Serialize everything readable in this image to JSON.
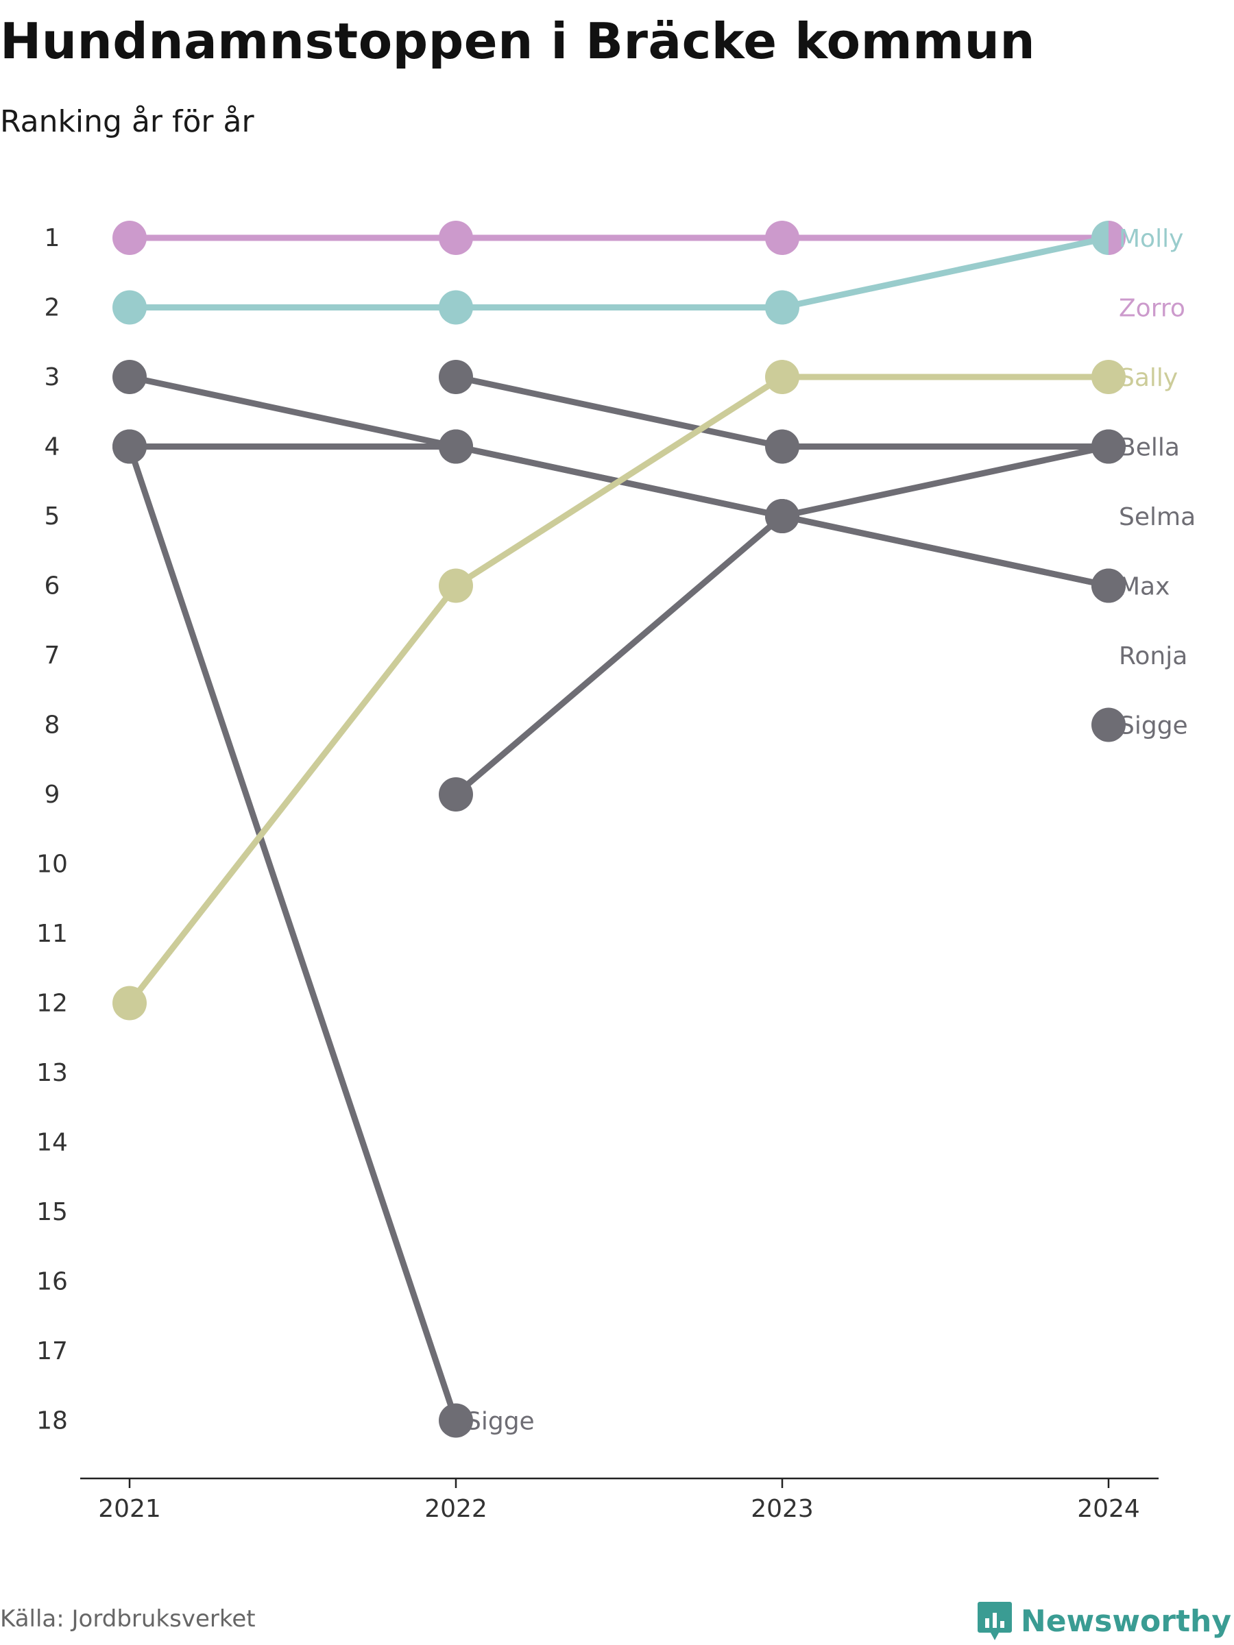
{
  "header": {
    "title": "Hundnamnstoppen i Bräcke kommun",
    "subtitle": "Ranking år för år"
  },
  "footer": {
    "source": "Källa: Jordbruksverket",
    "brand": "Newsworthy",
    "brand_icon": "newsworthy-logo-icon"
  },
  "colors": {
    "zorro": "#cc9acc",
    "molly": "#99cccc",
    "sally": "#cccc99",
    "gray": "#6e6d74",
    "axis": "#222222",
    "text": "#333333"
  },
  "chart_data": {
    "type": "line",
    "chart_style": "bump",
    "x": [
      "2021",
      "2022",
      "2023",
      "2024"
    ],
    "y_axis": {
      "reversed": true,
      "range": [
        1,
        18
      ],
      "ticks": [
        1,
        2,
        3,
        4,
        5,
        6,
        7,
        8,
        9,
        10,
        11,
        12,
        13,
        14,
        15,
        16,
        17,
        18
      ]
    },
    "grid": false,
    "series": [
      {
        "name": "Zorro",
        "color": "#cc9acc",
        "values": [
          1,
          1,
          1,
          1
        ]
      },
      {
        "name": "Molly",
        "color": "#99cccc",
        "values": [
          2,
          2,
          2,
          1
        ]
      },
      {
        "name": "Sally",
        "color": "#cccc99",
        "values": [
          12,
          6,
          3,
          3
        ]
      },
      {
        "name": "Bella",
        "color": "#6e6d74",
        "values": [
          null,
          9,
          5,
          4
        ]
      },
      {
        "name": "Selma",
        "color": "#6e6d74",
        "values": [
          4,
          4,
          5,
          6
        ]
      },
      {
        "name": "Max",
        "color": "#6e6d74",
        "values": [
          null,
          3,
          4,
          4
        ]
      },
      {
        "name": "Ronja",
        "color": "#6e6d74",
        "values": [
          3,
          4,
          5,
          6
        ]
      },
      {
        "name": "Sigge",
        "color": "#6e6d74",
        "values": [
          4,
          18,
          null,
          8
        ]
      }
    ],
    "end_labels": [
      {
        "text": "Molly",
        "rank": 1,
        "color": "#99cccc"
      },
      {
        "text": "Zorro",
        "rank": 2,
        "color": "#cc9acc"
      },
      {
        "text": "Sally",
        "rank": 3,
        "color": "#cccc99"
      },
      {
        "text": "Bella",
        "rank": 4,
        "color": "#6e6d74"
      },
      {
        "text": "Selma",
        "rank": 5,
        "color": "#6e6d74"
      },
      {
        "text": "Max",
        "rank": 6,
        "color": "#6e6d74"
      },
      {
        "text": "Ronja",
        "rank": 7,
        "color": "#6e6d74"
      },
      {
        "text": "Sigge",
        "rank": 8,
        "color": "#6e6d74"
      }
    ],
    "annotations": [
      {
        "text": "Sigge",
        "x": "2022",
        "rank": 18,
        "color": "#6e6d74"
      }
    ]
  }
}
